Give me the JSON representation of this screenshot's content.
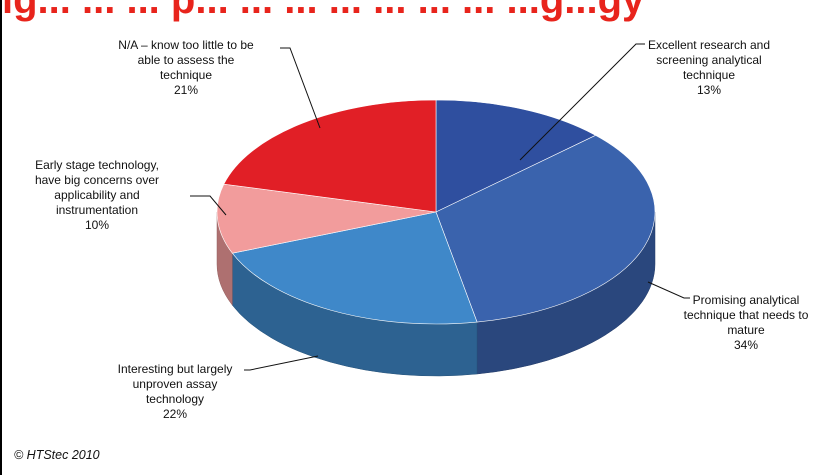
{
  "header": {
    "title_fragment": "ig... ... ... p... ... ... ... ... ... ... ...g...gy"
  },
  "chart_data": {
    "type": "pie",
    "three_d": true,
    "slices": [
      {
        "label": "Excellent research and screening analytical technique",
        "value": 13,
        "value_label": "13%",
        "color": "#2f4f9f"
      },
      {
        "label": "Promising analytical technique that needs to mature",
        "value": 34,
        "value_label": "34%",
        "color": "#3a63ad"
      },
      {
        "label": "Interesting but largely unproven assay technology",
        "value": 22,
        "value_label": "22%",
        "color": "#3f88c9"
      },
      {
        "label": "Early stage technology, have big concerns over applicability and instrumentation",
        "value": 10,
        "value_label": "10%",
        "color": "#f29c9c"
      },
      {
        "label": "N/A – know too little to be able to assess the technique",
        "value": 21,
        "value_label": "21%",
        "color": "#e11f26"
      }
    ]
  },
  "labels": {
    "excellent": [
      "Excellent research and",
      "screening analytical",
      "technique"
    ],
    "promising": [
      "Promising analytical",
      "technique that needs to",
      "mature"
    ],
    "interesting": [
      "Interesting but largely",
      "unproven assay",
      "technology"
    ],
    "early": [
      "Early stage technology,",
      "have big concerns over",
      "applicability and",
      "instrumentation"
    ],
    "na": [
      "N/A – know too little to be",
      "able to assess the",
      "technique"
    ]
  },
  "footer": {
    "copyright": "© HTStec 2010"
  }
}
